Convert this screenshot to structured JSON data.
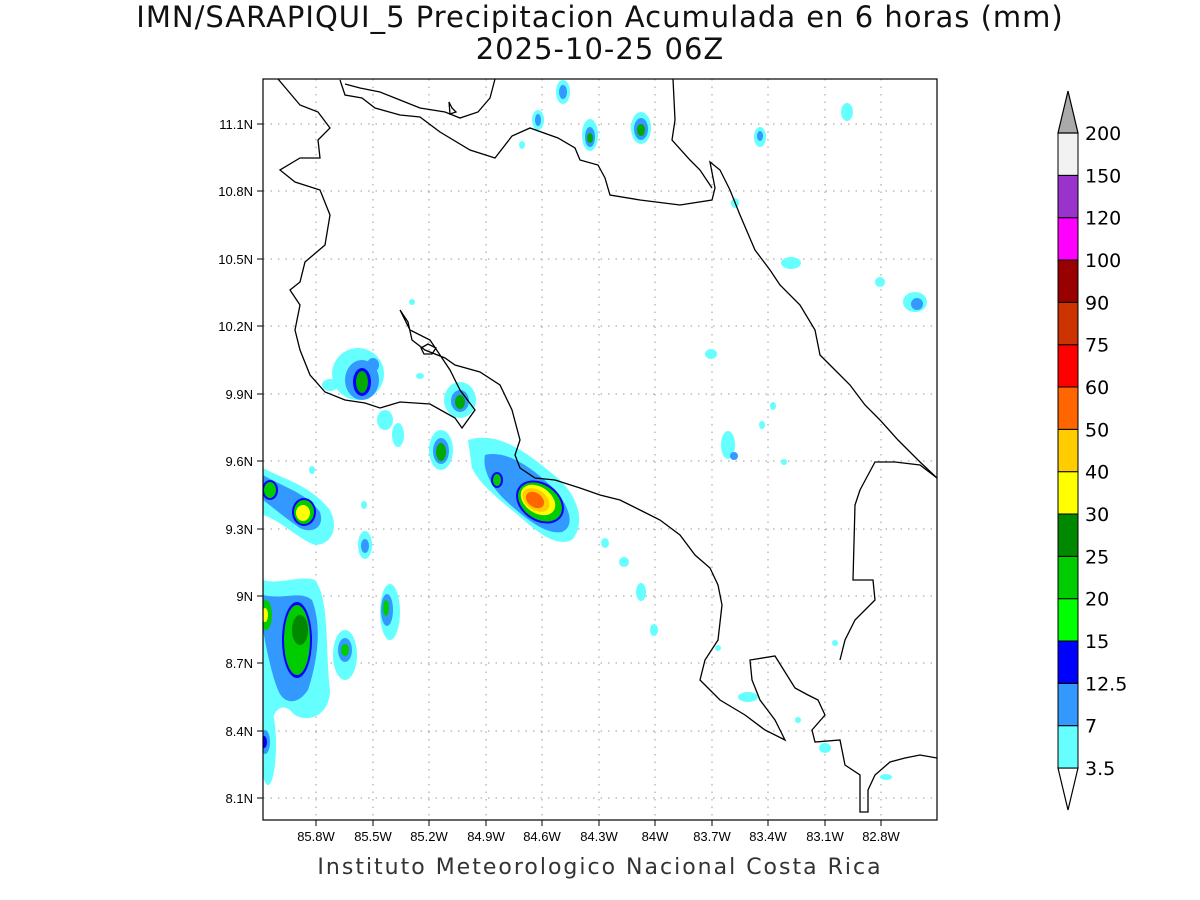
{
  "title": "IMN/SARAPIQUI_5 Precipitacion Acumulada en 6 horas (mm)",
  "subtitle": "2025-10-25 06Z",
  "footer": "Instituto Meteorologico Nacional Costa Rica",
  "axes": {
    "y_ticks": [
      "11.1N",
      "10.8N",
      "10.5N",
      "10.2N",
      "9.9N",
      "9.6N",
      "9.3N",
      "9N",
      "8.7N",
      "8.4N",
      "8.1N"
    ],
    "x_ticks": [
      "85.8W",
      "85.5W",
      "85.2W",
      "84.9W",
      "84.6W",
      "84.3W",
      "84W",
      "83.7W",
      "83.4W",
      "83.1W",
      "82.8W"
    ]
  },
  "colorbar": {
    "labels": [
      "3.5",
      "7",
      "12.5",
      "15",
      "20",
      "25",
      "30",
      "40",
      "50",
      "60",
      "75",
      "90",
      "100",
      "120",
      "150",
      "200"
    ],
    "colors": [
      "#66ffff",
      "#3399ff",
      "#0000ff",
      "#00ff00",
      "#00cc00",
      "#008800",
      "#ffff00",
      "#ffcc00",
      "#ff6600",
      "#ff0000",
      "#cc3300",
      "#990000",
      "#ff00ff",
      "#9933cc",
      "#f2f2f2",
      "#aaaaaa"
    ]
  }
}
